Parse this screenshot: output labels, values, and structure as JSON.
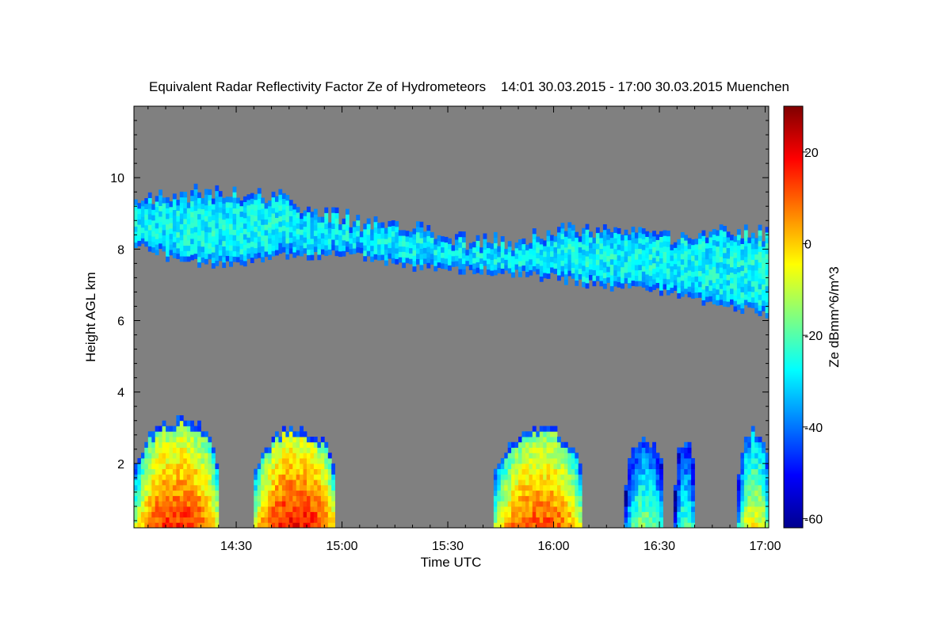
{
  "chart_data": {
    "type": "heatmap",
    "title": "Equivalent Radar Reflectivity Factor Ze of Hydrometeors    14:01 30.03.2015 - 17:00 30.03.2015 Muenchen",
    "xlabel": "Time UTC",
    "ylabel": "Height AGL km",
    "colorbar_label": "Ze dBmm^6/m^3",
    "x_ticks": [
      "14:30",
      "15:00",
      "15:30",
      "16:00",
      "16:30",
      "17:00"
    ],
    "x_tick_minutes": [
      30,
      60,
      90,
      120,
      150,
      180
    ],
    "xlim_minutes": [
      1,
      181
    ],
    "y_ticks": [
      "2",
      "4",
      "6",
      "8",
      "10"
    ],
    "y_tick_values": [
      2,
      4,
      6,
      8,
      10
    ],
    "ylim": [
      0.2,
      12.0
    ],
    "colorbar_ticks": [
      "20",
      "0",
      "-20",
      "-40",
      "-60"
    ],
    "colorbar_tick_values": [
      20,
      0,
      -20,
      -40,
      -60
    ],
    "clim": [
      -62,
      30
    ],
    "background_color": "#808080",
    "colormap": [
      "#00008f",
      "#0000ff",
      "#0080ff",
      "#00ffff",
      "#80ff80",
      "#ffff00",
      "#ff8000",
      "#ff0000",
      "#800000"
    ],
    "ice_cloud_layer": {
      "time_min": [
        1,
        10,
        20,
        30,
        40,
        50,
        60,
        70,
        80,
        90,
        100,
        110,
        120,
        130,
        140,
        150,
        160,
        170,
        181
      ],
      "top_km": [
        9.3,
        9.4,
        9.5,
        9.5,
        9.4,
        9.0,
        8.8,
        8.6,
        8.5,
        8.3,
        8.1,
        8.2,
        8.4,
        8.5,
        8.4,
        8.3,
        8.3,
        8.4,
        8.4
      ],
      "base_km": [
        8.1,
        7.8,
        7.6,
        7.5,
        7.8,
        7.8,
        7.9,
        7.7,
        7.5,
        7.4,
        7.4,
        7.3,
        7.2,
        7.0,
        6.9,
        6.8,
        6.6,
        6.4,
        6.1
      ],
      "typical_ze_dbz": -25
    },
    "low_precip_regions": [
      {
        "start_min": 1,
        "end_min": 25,
        "top_km": 3.1,
        "peak_ze_dbz": 15
      },
      {
        "start_min": 35,
        "end_min": 58,
        "top_km": 2.9,
        "peak_ze_dbz": 18
      },
      {
        "start_min": 103,
        "end_min": 128,
        "top_km": 2.9,
        "peak_ze_dbz": 12
      },
      {
        "start_min": 140,
        "end_min": 151,
        "top_km": 2.6,
        "peak_ze_dbz": -15
      },
      {
        "start_min": 154,
        "end_min": 160,
        "top_km": 2.5,
        "peak_ze_dbz": -20
      },
      {
        "start_min": 172,
        "end_min": 181,
        "top_km": 2.8,
        "peak_ze_dbz": -5
      }
    ]
  }
}
